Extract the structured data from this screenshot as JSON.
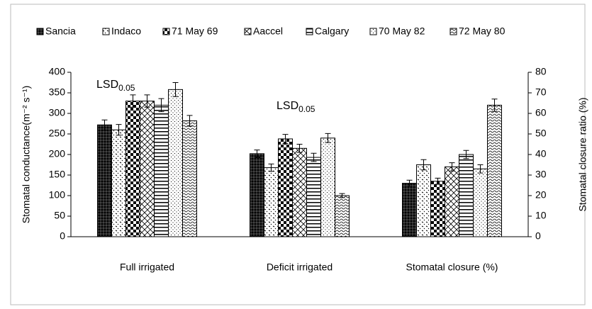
{
  "chart_data": {
    "type": "bar",
    "categories": [
      "Full  irrigated",
      "Deficit irrigated",
      "Stomatal closure (%)"
    ],
    "category_axes": [
      "y",
      "y",
      "y2"
    ],
    "ylabel": "Stomatal conductance(m⁻² s⁻¹)",
    "y2label": "Stomatal closure ratio (%)",
    "ylim": [
      0,
      400
    ],
    "yticks": [
      0,
      50,
      100,
      150,
      200,
      250,
      300,
      350,
      400
    ],
    "y2lim": [
      0,
      80
    ],
    "y2ticks": [
      0,
      10,
      20,
      30,
      40,
      50,
      60,
      70,
      80
    ],
    "annotations": [
      {
        "text": "LSD",
        "sub": "0.05"
      },
      {
        "text": "LSD",
        "sub": "0.05"
      }
    ],
    "legend": "top",
    "series": [
      {
        "name": "Sancia",
        "color": "#000",
        "pattern": "crosshatch",
        "values": [
          272,
          202,
          26
        ],
        "errors": [
          12,
          9,
          1.5
        ]
      },
      {
        "name": "Indaco",
        "color": "#000",
        "pattern": "dots",
        "values": [
          260,
          168,
          35
        ],
        "errors": [
          13,
          9,
          2.5
        ]
      },
      {
        "name": "71 May 69",
        "color": "#000",
        "pattern": "checker",
        "values": [
          330,
          238,
          27
        ],
        "errors": [
          15,
          11,
          1.5
        ]
      },
      {
        "name": "Aaccel",
        "color": "#000",
        "pattern": "diamond",
        "values": [
          330,
          215,
          34
        ],
        "errors": [
          15,
          10,
          2
        ]
      },
      {
        "name": "Calgary",
        "color": "#000",
        "pattern": "hlines",
        "values": [
          320,
          193,
          40
        ],
        "errors": [
          16,
          10,
          2
        ]
      },
      {
        "name": "70 May 82",
        "color": "#000",
        "pattern": "sparse",
        "values": [
          358,
          240,
          33
        ],
        "errors": [
          17,
          11,
          2
        ]
      },
      {
        "name": "72 May 80",
        "color": "#000",
        "pattern": "waves",
        "values": [
          282,
          100,
          64
        ],
        "errors": [
          13,
          5,
          3
        ]
      }
    ]
  }
}
